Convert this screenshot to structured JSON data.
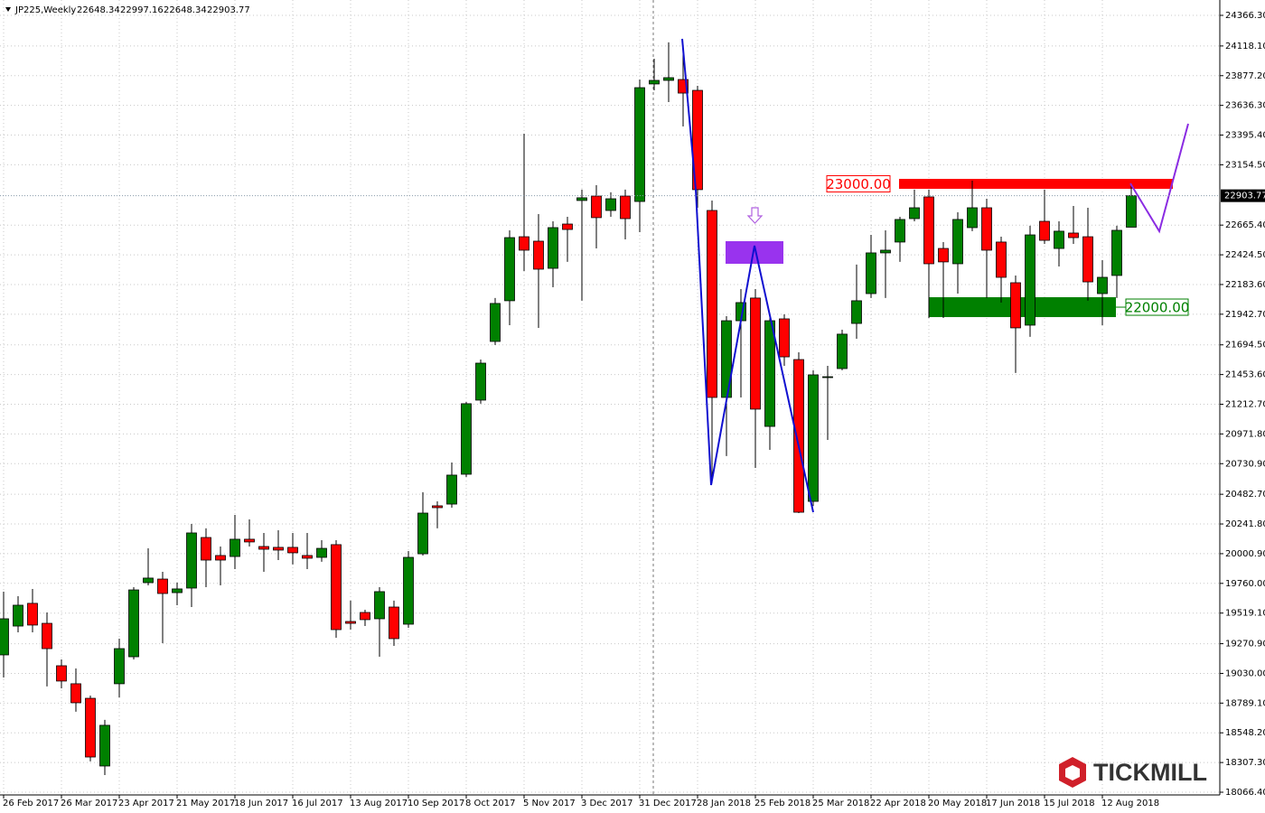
{
  "header": {
    "symbol": "JP225,Weekly",
    "ohlc": [
      22648.34,
      22997.16,
      22648.34,
      22903.77
    ]
  },
  "chart_data": {
    "type": "candlestick",
    "categories": [
      "26 Feb 2017",
      null,
      null,
      null,
      "26 Mar 2017",
      null,
      null,
      null,
      "23 Apr 2017",
      null,
      null,
      null,
      "21 May 2017",
      null,
      null,
      null,
      "18 Jun 2017",
      null,
      null,
      null,
      "16 Jul 2017",
      null,
      null,
      null,
      "13 Aug 2017",
      null,
      null,
      null,
      "10 Sep 2017",
      null,
      null,
      null,
      "8 Oct 2017",
      null,
      null,
      null,
      "5 Nov 2017",
      null,
      null,
      null,
      "3 Dec 2017",
      null,
      null,
      null,
      "31 Dec 2017",
      null,
      null,
      null,
      "28 Jan 2018",
      null,
      null,
      null,
      "25 Feb 2018",
      null,
      null,
      null,
      "25 Mar 2018",
      null,
      null,
      null,
      "22 Apr 2018",
      null,
      null,
      null,
      "20 May 2018",
      null,
      null,
      null,
      "17 Jun 2018",
      null,
      null,
      null,
      "15 Jul 2018",
      null,
      null,
      null,
      "12 Aug 2018",
      null,
      null
    ],
    "open": [
      19180,
      19414,
      19598,
      19436,
      19092,
      18946,
      18828,
      18279,
      18946,
      19165,
      19766,
      19795,
      19685,
      19722,
      20132,
      19986,
      19978,
      20118,
      20059,
      20052,
      20052,
      19986,
      19971,
      20074,
      19451,
      19524,
      19473,
      19568,
      19429,
      20000,
      20389,
      20403,
      20645,
      21246,
      21722,
      22052,
      22571,
      22535,
      22315,
      22674,
      22865,
      22901,
      22784,
      22901,
      22857,
      23810,
      23839,
      23846,
      23758,
      22784,
      21268,
      21890,
      22074,
      21033,
      21905,
      21575,
      20425,
      21429,
      21502,
      21868,
      22110,
      22440,
      22528,
      22718,
      22894,
      22476,
      22352,
      22645,
      22806,
      22528,
      22198,
      21854,
      22696,
      22476,
      22601,
      22571,
      22110,
      22257,
      22648.34
    ],
    "high": [
      19693,
      19656,
      19715,
      19524,
      19143,
      19070,
      18850,
      18653,
      19312,
      19729,
      20044,
      19854,
      19766,
      20242,
      20206,
      20059,
      20315,
      20279,
      20169,
      20191,
      20169,
      20169,
      20110,
      20110,
      19620,
      19546,
      19729,
      19620,
      20022,
      20499,
      20425,
      20740,
      21231,
      21575,
      22074,
      22623,
      23407,
      22755,
      22696,
      22733,
      22953,
      22989,
      22931,
      22953,
      23846,
      24015,
      24147,
      24088,
      23795,
      22865,
      21927,
      22147,
      22147,
      21927,
      21942,
      21634,
      21488,
      21524,
      21817,
      22345,
      22586,
      22623,
      22733,
      22953,
      22953,
      22528,
      22769,
      23026,
      22879,
      22572,
      22257,
      22660,
      22953,
      22696,
      22821,
      22806,
      22381,
      22660,
      22997.16
    ],
    "low": [
      18997,
      19363,
      19363,
      18924,
      18909,
      18719,
      18316,
      18206,
      18836,
      19143,
      19744,
      19275,
      19583,
      19568,
      19729,
      19744,
      19876,
      20059,
      19854,
      19949,
      19913,
      19876,
      19935,
      19319,
      19385,
      19414,
      19165,
      19253,
      19400,
      19986,
      20206,
      20374,
      20623,
      21217,
      21693,
      21854,
      22293,
      21832,
      22161,
      22367,
      22052,
      22476,
      22733,
      22550,
      22608,
      23758,
      23663,
      23465,
      22806,
      20572,
      20792,
      21268,
      20696,
      20843,
      21524,
      20330,
      20389,
      20923,
      21488,
      21744,
      22074,
      22074,
      22367,
      22696,
      21912,
      21912,
      22110,
      22616,
      22074,
      22037,
      21466,
      21759,
      22513,
      22330,
      22513,
      22052,
      21854,
      22074,
      22648.34
    ],
    "close": [
      19473,
      19583,
      19422,
      19231,
      18968,
      18792,
      18352,
      18609,
      19231,
      19707,
      19803,
      19678,
      19715,
      20169,
      19949,
      19949,
      20118,
      20096,
      20037,
      20030,
      20008,
      19964,
      20044,
      19385,
      19436,
      19466,
      19693,
      19312,
      19971,
      20330,
      20374,
      20638,
      21217,
      21546,
      22030,
      22564,
      22462,
      22308,
      22645,
      22630,
      22887,
      22726,
      22879,
      22718,
      23780,
      23839,
      23861,
      23736,
      22953,
      21268,
      21890,
      22037,
      21173,
      21890,
      21597,
      20337,
      21451,
      21436,
      21781,
      22052,
      22440,
      22462,
      22711,
      22806,
      22352,
      22367,
      22711,
      22806,
      22462,
      22242,
      21832,
      22586,
      22542,
      22616,
      22564,
      22205,
      22242,
      22623,
      22903.77
    ],
    "up_color": "#008000",
    "down_color": "#ff0000",
    "ylim": [
      18066.4,
      24366.3
    ],
    "yticks": [
      {
        "value": 24366.3,
        "label": "24366.30"
      },
      {
        "value": 24118.1,
        "label": "24118.10"
      },
      {
        "value": 23877.2,
        "label": "23877.20"
      },
      {
        "value": 23636.3,
        "label": "23636.30"
      },
      {
        "value": 23395.4,
        "label": "23395.40"
      },
      {
        "value": 23154.5,
        "label": "23154.50"
      },
      {
        "value": 22665.4,
        "label": "22665.40"
      },
      {
        "value": 22424.5,
        "label": "22424.50"
      },
      {
        "value": 22183.6,
        "label": "22183.60"
      },
      {
        "value": 21942.7,
        "label": "21942.70"
      },
      {
        "value": 21694.5,
        "label": "21694.50"
      },
      {
        "value": 21453.6,
        "label": "21453.60"
      },
      {
        "value": 21212.7,
        "label": "21212.70"
      },
      {
        "value": 20971.8,
        "label": "20971.80"
      },
      {
        "value": 20730.9,
        "label": "20730.90"
      },
      {
        "value": 20482.7,
        "label": "20482.70"
      },
      {
        "value": 20241.8,
        "label": "20241.80"
      },
      {
        "value": 20000.9,
        "label": "20000.90"
      },
      {
        "value": 19760,
        "label": "19760.00"
      },
      {
        "value": 19519.1,
        "label": "19519.10"
      },
      {
        "value": 19270.9,
        "label": "19270.90"
      },
      {
        "value": 19030,
        "label": "19030.00"
      },
      {
        "value": 18789.1,
        "label": "18789.10"
      },
      {
        "value": 18548.2,
        "label": "18548.20"
      },
      {
        "value": 18307.3,
        "label": "18307.30"
      },
      {
        "value": 18066.4,
        "label": "18066.40"
      }
    ],
    "grid": true,
    "last_price": 22903.77,
    "levels": [
      {
        "value": 23000,
        "label": "23000.00",
        "color": "#ff0000"
      },
      {
        "value": 22000,
        "label": "22000.00",
        "color": "#008000"
      }
    ]
  },
  "logo": "TICKMILL"
}
